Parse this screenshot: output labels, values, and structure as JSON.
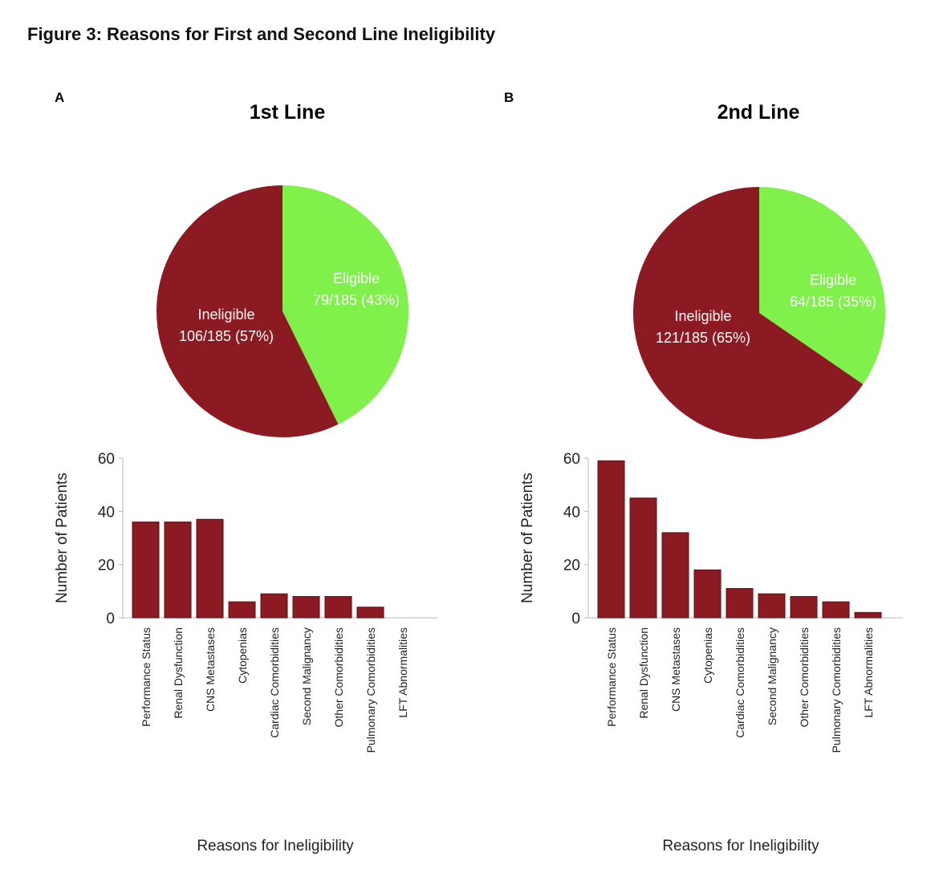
{
  "title": "Figure 3: Reasons for First and Second Line Ineligibility",
  "colors": {
    "ineligible": "#8b1a22",
    "eligible": "#80f04a",
    "bar": "#8b1a22"
  },
  "chart_data": [
    {
      "type": "pie",
      "panel": "A",
      "title": "1st Line",
      "slices": [
        {
          "label": "Eligible",
          "text": "79/185 (43%)",
          "value": 79
        },
        {
          "label": "Ineligible",
          "text": "106/185 (57%)",
          "value": 106
        }
      ]
    },
    {
      "type": "pie",
      "panel": "B",
      "title": "2nd Line",
      "slices": [
        {
          "label": "Eligible",
          "text": "64/185 (35%)",
          "value": 64
        },
        {
          "label": "Ineligible",
          "text": "121/185 (65%)",
          "value": 121
        }
      ]
    },
    {
      "type": "bar",
      "panel": "A",
      "xlabel": "Reasons for Ineligibility",
      "ylabel": "Number of Patients",
      "ylim": [
        0,
        60
      ],
      "yticks": [
        "0",
        "20",
        "40",
        "60"
      ],
      "categories": [
        "Performance Status",
        "Renal Dysfunction",
        "CNS Metastases",
        "Cytopenias",
        "Cardiac Comorbidities",
        "Second Malignancy",
        "Other Comorbidities",
        "Pulmonary Comorbidities",
        "LFT Abnormalities"
      ],
      "values": [
        36,
        36,
        37,
        6,
        9,
        8,
        8,
        4,
        0
      ]
    },
    {
      "type": "bar",
      "panel": "B",
      "xlabel": "Reasons for Ineligibility",
      "ylabel": "Number of Patients",
      "ylim": [
        0,
        60
      ],
      "yticks": [
        "0",
        "20",
        "40",
        "60"
      ],
      "categories": [
        "Performance Status",
        "Renal Dysfunction",
        "CNS Metastases",
        "Cytopenias",
        "Cardiac Comorbidities",
        "Second Malignancy",
        "Other Comorbidities",
        "Pulmonary Comorbidities",
        "LFT Abnormalities"
      ],
      "values": [
        59,
        45,
        32,
        18,
        11,
        9,
        8,
        6,
        2
      ]
    }
  ]
}
